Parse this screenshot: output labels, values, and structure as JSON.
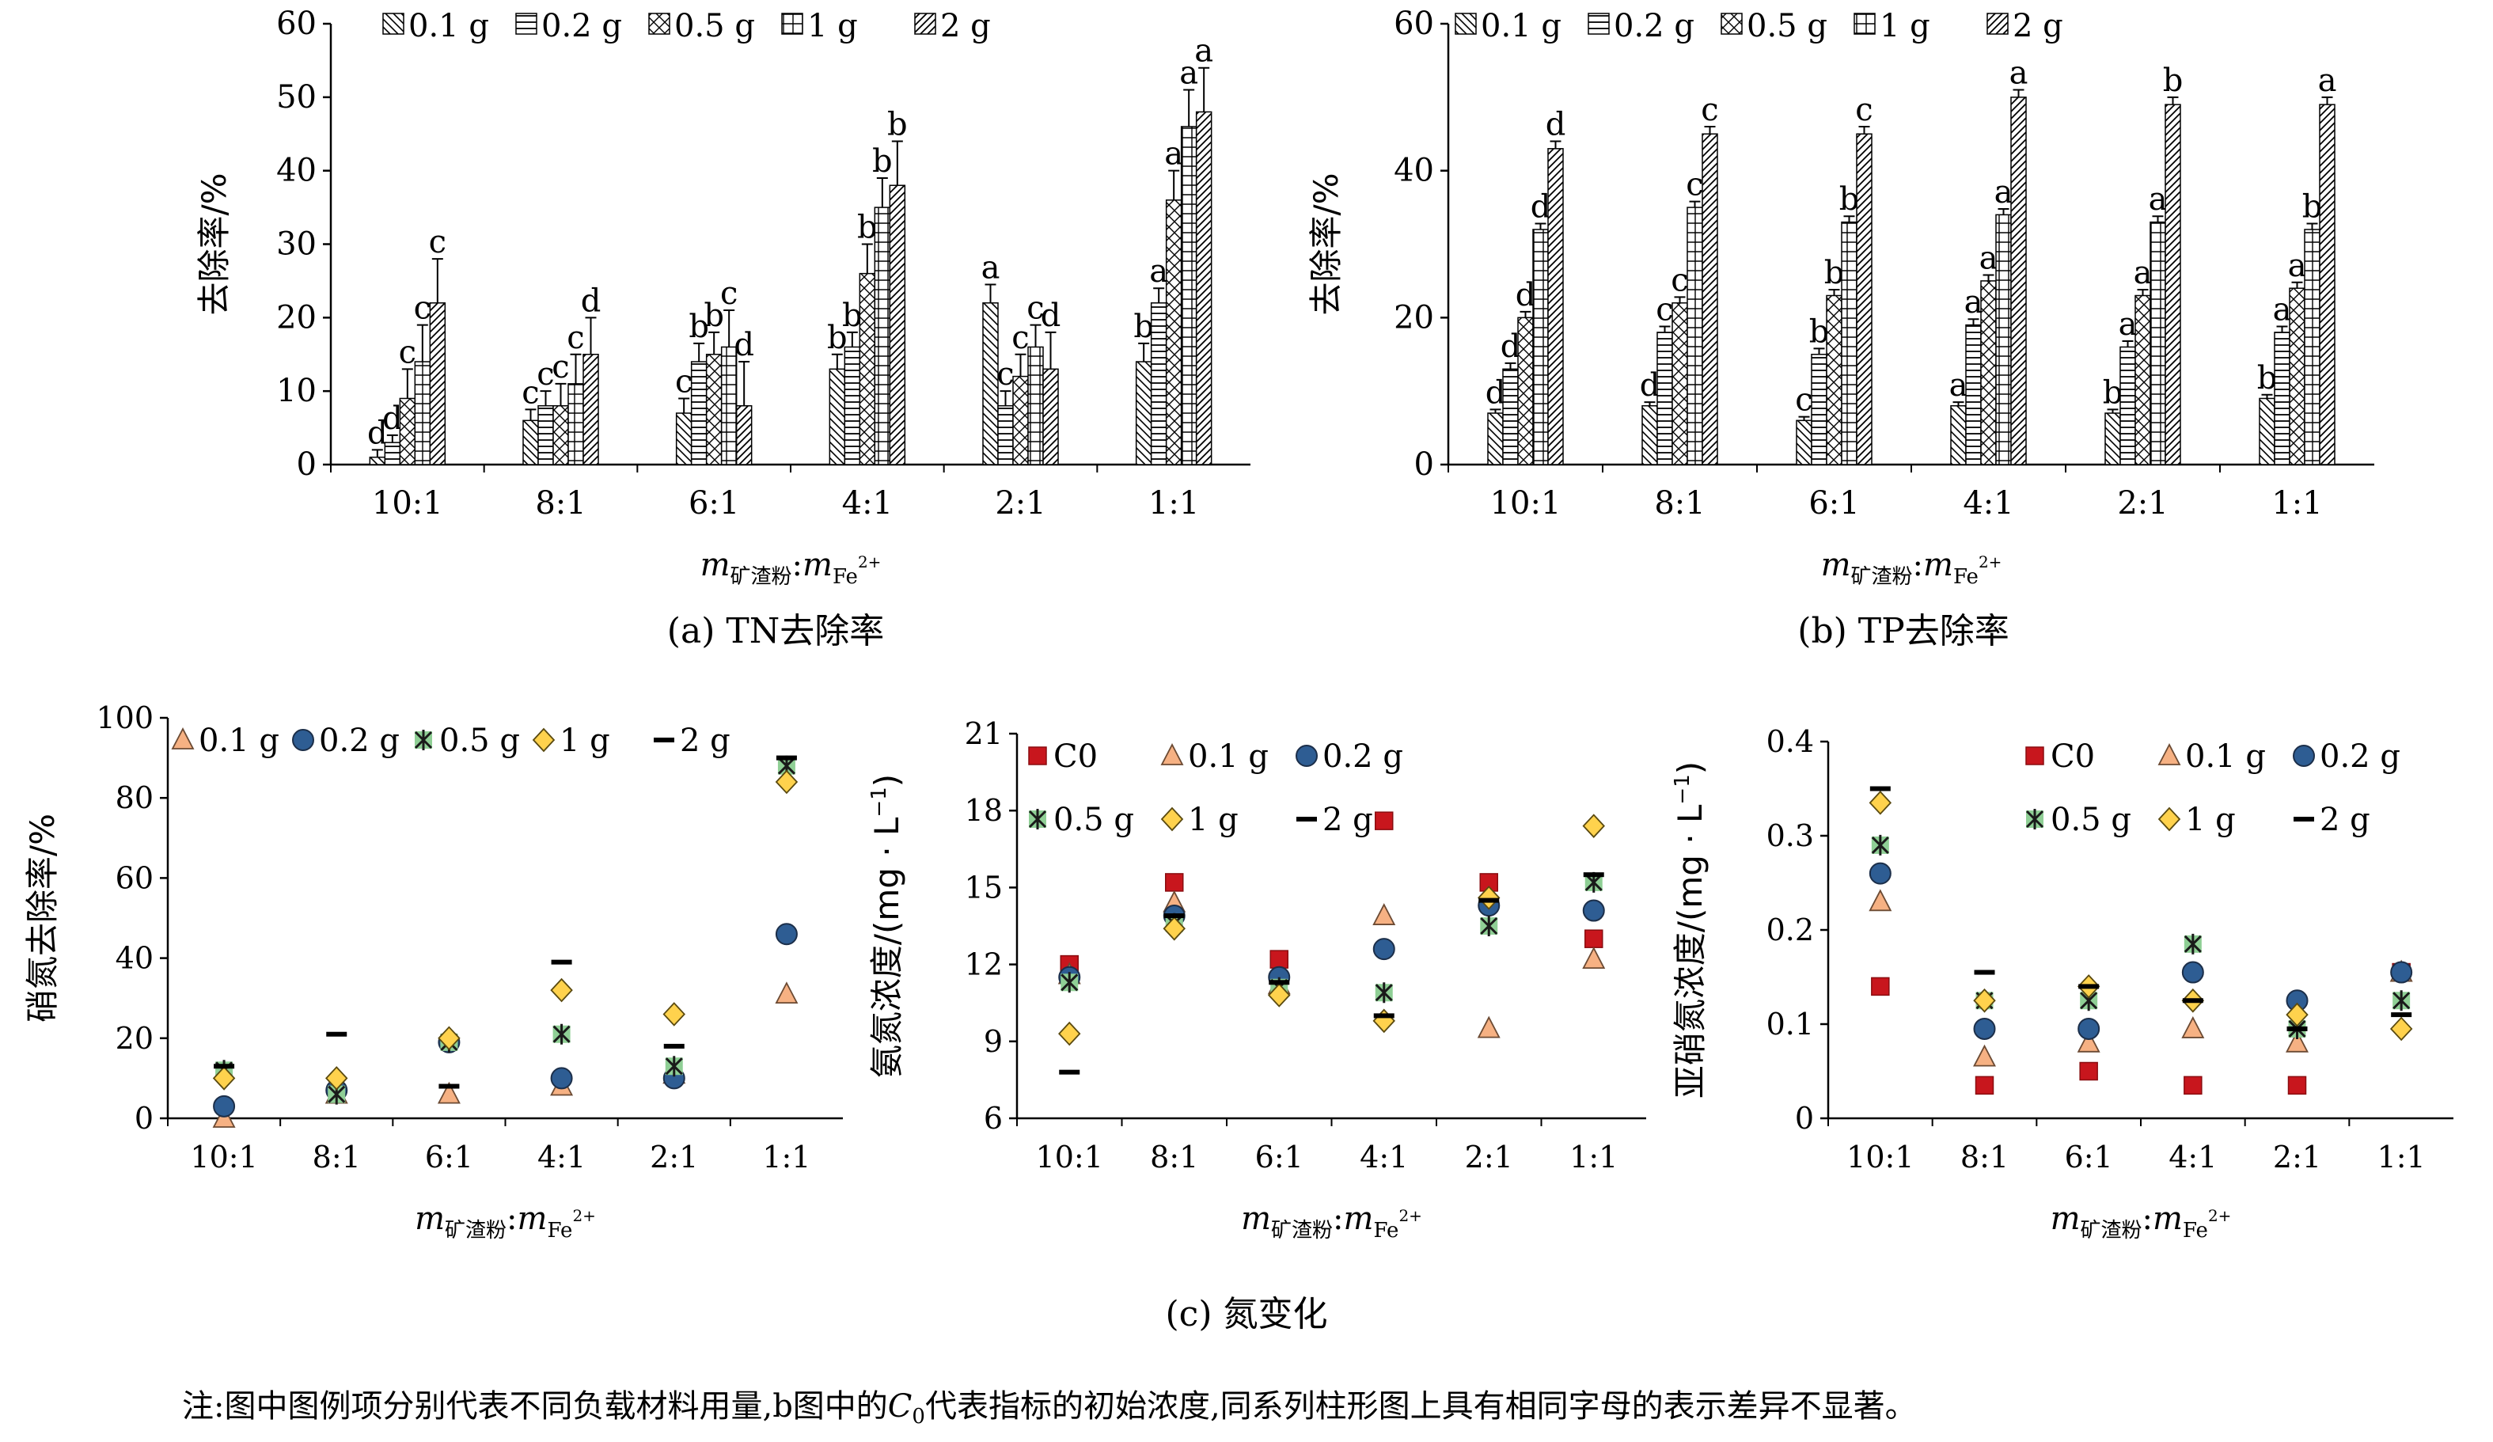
{
  "chart_data": [
    {
      "id": "a",
      "type": "bar",
      "caption": "(a) TN去除率",
      "ylabel": "去除率/%",
      "xlabel_main": "m",
      "xlabel_sub1": "矿渣粉",
      "xlabel_colon": ":",
      "xlabel_main2": "m",
      "xlabel_sub2": "Fe",
      "xlabel_sup2": "2+",
      "ylim": [
        0,
        60
      ],
      "yticks": [
        "0",
        "10",
        "20",
        "30",
        "40",
        "50",
        "60"
      ],
      "categories": [
        "10:1",
        "8:1",
        "6:1",
        "4:1",
        "2:1",
        "1:1"
      ],
      "series": [
        {
          "name": "0.1 g",
          "values": [
            1,
            6,
            7,
            13,
            22,
            14
          ],
          "errors": [
            1,
            1.5,
            2,
            2,
            2.5,
            2.5
          ],
          "letters": [
            "d",
            "c",
            "c",
            "b",
            "a",
            "b"
          ]
        },
        {
          "name": "0.2 g",
          "values": [
            3,
            8,
            14,
            16,
            8,
            22
          ],
          "errors": [
            1,
            2,
            2.5,
            2,
            2,
            2
          ],
          "letters": [
            "d",
            "c",
            "b",
            "b",
            "c",
            "a"
          ]
        },
        {
          "name": "0.5 g",
          "values": [
            9,
            8,
            15,
            26,
            12,
            36
          ],
          "errors": [
            4,
            3,
            3,
            4,
            3,
            4
          ],
          "letters": [
            "c",
            "c",
            "b",
            "b",
            "c",
            "a"
          ]
        },
        {
          "name": "1 g",
          "values": [
            14,
            11,
            16,
            35,
            16,
            46
          ],
          "errors": [
            5,
            4,
            5,
            4,
            3,
            5
          ],
          "letters": [
            "c",
            "c",
            "c",
            "b",
            "c",
            "a"
          ]
        },
        {
          "name": "2 g",
          "values": [
            22,
            15,
            8,
            38,
            13,
            48
          ],
          "errors": [
            6,
            5,
            6,
            6,
            5,
            6
          ],
          "letters": [
            "c",
            "d",
            "d",
            "b",
            "d",
            "a"
          ]
        }
      ]
    },
    {
      "id": "b",
      "type": "bar",
      "caption": "(b) TP去除率",
      "ylabel": "去除率/%",
      "xlabel_main": "m",
      "xlabel_sub1": "矿渣粉",
      "xlabel_colon": ":",
      "xlabel_main2": "m",
      "xlabel_sub2": "Fe",
      "xlabel_sup2": "2+",
      "ylim": [
        0,
        60
      ],
      "yticks": [
        "0",
        "20",
        "40",
        "60"
      ],
      "categories": [
        "10:1",
        "8:1",
        "6:1",
        "4:1",
        "2:1",
        "1:1"
      ],
      "series": [
        {
          "name": "0.1 g",
          "values": [
            7,
            8,
            6,
            8,
            7,
            9
          ],
          "errors": [
            0.5,
            0.5,
            0.5,
            0.5,
            0.5,
            0.5
          ],
          "letters": [
            "d",
            "d",
            "c",
            "a",
            "b",
            "b"
          ]
        },
        {
          "name": "0.2 g",
          "values": [
            13,
            18,
            15,
            19,
            16,
            18
          ],
          "errors": [
            0.8,
            0.8,
            0.8,
            0.8,
            0.8,
            0.8
          ],
          "letters": [
            "d",
            "c",
            "b",
            "a",
            "a",
            "a"
          ]
        },
        {
          "name": "0.5 g",
          "values": [
            20,
            22,
            23,
            25,
            23,
            24
          ],
          "errors": [
            0.8,
            0.8,
            0.8,
            0.8,
            0.8,
            0.8
          ],
          "letters": [
            "d",
            "c",
            "b",
            "a",
            "a",
            "a"
          ]
        },
        {
          "name": "1 g",
          "values": [
            32,
            35,
            33,
            34,
            33,
            32
          ],
          "errors": [
            0.8,
            0.8,
            0.8,
            0.8,
            0.8,
            0.8
          ],
          "letters": [
            "d",
            "c",
            "b",
            "a",
            "a",
            "b"
          ]
        },
        {
          "name": "2 g",
          "values": [
            43,
            45,
            45,
            50,
            49,
            49
          ],
          "errors": [
            1,
            1,
            1,
            1,
            1,
            1
          ],
          "letters": [
            "d",
            "c",
            "c",
            "a",
            "b",
            "a"
          ]
        }
      ]
    },
    {
      "id": "c1",
      "type": "scatter",
      "ylabel": "硝氮去除率/%",
      "xlabel_main": "m",
      "xlabel_sub1": "矿渣粉",
      "xlabel_colon": ":",
      "xlabel_main2": "m",
      "xlabel_sub2": "Fe",
      "xlabel_sup2": "2+",
      "ylim": [
        0,
        100
      ],
      "yticks": [
        "0",
        "20",
        "40",
        "60",
        "80",
        "100"
      ],
      "categories": [
        "10:1",
        "8:1",
        "6:1",
        "4:1",
        "2:1",
        "1:1"
      ],
      "series": [
        {
          "name": "0.1 g",
          "marker": "triangle",
          "values": [
            0,
            6,
            6,
            8,
            11,
            31
          ]
        },
        {
          "name": "0.2 g",
          "marker": "circle",
          "values": [
            3,
            7,
            19,
            10,
            10,
            46
          ]
        },
        {
          "name": "0.5 g",
          "marker": "star",
          "values": [
            12,
            6,
            19,
            21,
            13,
            88
          ]
        },
        {
          "name": "1 g",
          "marker": "diamond",
          "values": [
            10,
            10,
            20,
            32,
            26,
            84
          ]
        },
        {
          "name": "2 g",
          "marker": "dash",
          "values": [
            13,
            21,
            8,
            39,
            18,
            90
          ]
        }
      ]
    },
    {
      "id": "c2",
      "type": "scatter",
      "ylabel": "氨氮浓度/(mg · L",
      "ylabel_sup": "−1",
      "ylabel_end": ")",
      "xlabel_main": "m",
      "xlabel_sub1": "矿渣粉",
      "xlabel_colon": ":",
      "xlabel_main2": "m",
      "xlabel_sub2": "Fe",
      "xlabel_sup2": "2+",
      "ylim": [
        6,
        21
      ],
      "yticks": [
        "6",
        "9",
        "12",
        "15",
        "18",
        "21"
      ],
      "categories": [
        "10:1",
        "8:1",
        "6:1",
        "4:1",
        "2:1",
        "1:1"
      ],
      "series": [
        {
          "name": "C0",
          "marker": "square",
          "values": [
            12,
            15.2,
            12.2,
            17.6,
            15.2,
            13
          ]
        },
        {
          "name": "0.1 g",
          "marker": "triangle",
          "values": [
            11.6,
            14.4,
            11.2,
            13.9,
            9.5,
            12.2
          ]
        },
        {
          "name": "0.2 g",
          "marker": "circle",
          "values": [
            11.5,
            13.9,
            11.5,
            12.6,
            14.3,
            14.1
          ]
        },
        {
          "name": "0.5 g",
          "marker": "star",
          "values": [
            11.3,
            13.6,
            11.1,
            10.9,
            13.5,
            15.2
          ]
        },
        {
          "name": "1 g",
          "marker": "diamond",
          "values": [
            9.3,
            13.4,
            10.8,
            9.8,
            14.6,
            17.4
          ]
        },
        {
          "name": "2 g",
          "marker": "dash",
          "values": [
            7.8,
            13.9,
            11.3,
            10,
            14.5,
            15.5
          ]
        }
      ]
    },
    {
      "id": "c3",
      "type": "scatter",
      "ylabel": "亚硝氮浓度/(mg · L",
      "ylabel_sup": "−1",
      "ylabel_end": ")",
      "xlabel_main": "m",
      "xlabel_sub1": "矿渣粉",
      "xlabel_colon": ":",
      "xlabel_main2": "m",
      "xlabel_sub2": "Fe",
      "xlabel_sup2": "2+",
      "ylim": [
        0,
        0.4
      ],
      "yticks": [
        "0",
        "0.1",
        "0.2",
        "0.3",
        "0.4"
      ],
      "categories": [
        "10:1",
        "8:1",
        "6:1",
        "4:1",
        "2:1",
        "1:1"
      ],
      "series": [
        {
          "name": "C0",
          "marker": "square",
          "values": [
            0.14,
            0.035,
            0.05,
            0.035,
            0.035,
            0.155
          ]
        },
        {
          "name": "0.1 g",
          "marker": "triangle",
          "values": [
            0.23,
            0.065,
            0.08,
            0.095,
            0.08,
            0.155
          ]
        },
        {
          "name": "0.2 g",
          "marker": "circle",
          "values": [
            0.26,
            0.095,
            0.095,
            0.155,
            0.125,
            0.155
          ]
        },
        {
          "name": "0.5 g",
          "marker": "star",
          "values": [
            0.29,
            0.125,
            0.125,
            0.185,
            0.095,
            0.125
          ]
        },
        {
          "name": "1 g",
          "marker": "diamond",
          "values": [
            0.335,
            0.125,
            0.14,
            0.125,
            0.11,
            0.095
          ]
        },
        {
          "name": "2 g",
          "marker": "dash",
          "values": [
            0.35,
            0.155,
            0.14,
            0.125,
            0.095,
            0.11
          ]
        }
      ]
    }
  ],
  "figure": {
    "caption_c": "(c) 氮变化",
    "note_a": "注:图中图例项分别代表不同负载材料用量,b图中的",
    "note_c": "C",
    "note_sub": "0",
    "note_b": "代表指标的初始浓度,同系列柱形图上具有相同字母的表示差异不显著。"
  },
  "colors": {
    "C0": "#c8161d",
    "0.1 g": "#f6b183",
    "0.2 g": "#2e5d93",
    "0.5 g": "#8fcf95",
    "1 g": "#ffd24d",
    "2 g": "#000000"
  }
}
